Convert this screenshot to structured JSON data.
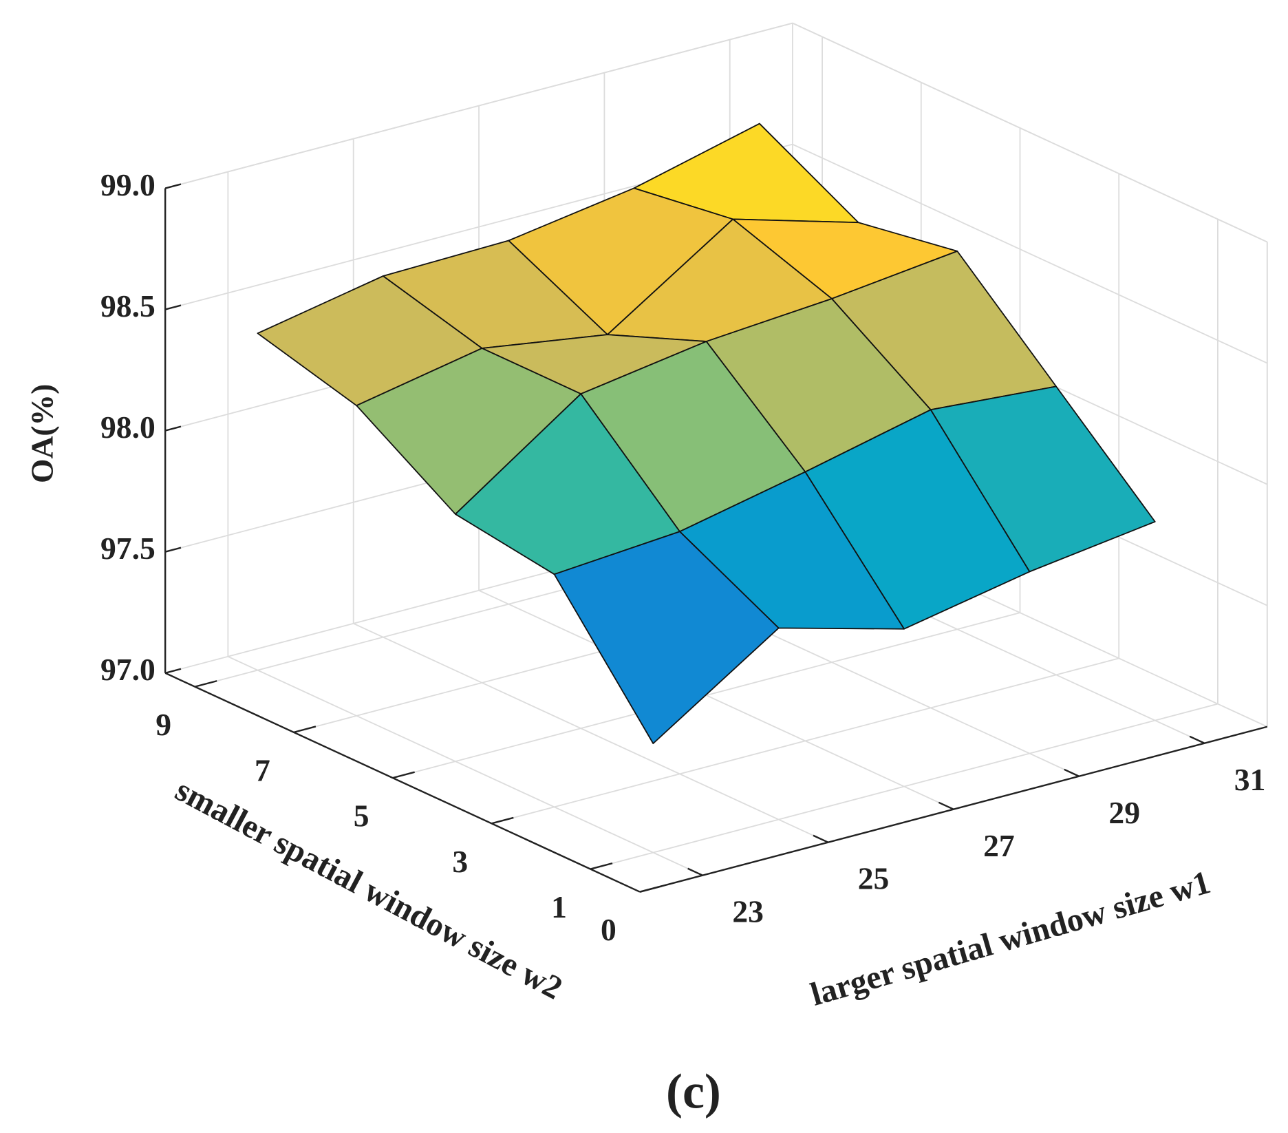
{
  "chart_data": {
    "type": "surface3d",
    "caption": "(c)",
    "xlabel": "larger spatial window size w1",
    "ylabel": "smaller spatial window size w2",
    "zlabel": "OA(%)",
    "x": [
      23,
      25,
      27,
      29,
      31
    ],
    "y": [
      1,
      3,
      5,
      7,
      9
    ],
    "z": [
      [
        97.45,
        97.79,
        97.65,
        97.75,
        97.82
      ],
      [
        97.96,
        98.0,
        98.11,
        98.23,
        98.19
      ],
      [
        98.02,
        98.38,
        98.46,
        98.5,
        98.56
      ],
      [
        98.28,
        98.38,
        98.3,
        98.64,
        98.49
      ],
      [
        98.39,
        98.49,
        98.5,
        98.58,
        98.71
      ]
    ],
    "xlim": [
      22,
      32
    ],
    "ylim": [
      0,
      9.6
    ],
    "zlim": [
      97,
      99
    ],
    "xticks": [
      23,
      25,
      27,
      29,
      31
    ],
    "yticks": [
      0,
      1,
      3,
      5,
      7,
      9
    ],
    "zticks": [
      {
        "value": 97,
        "label": "97.0"
      },
      {
        "value": 97.5,
        "label": "97.5"
      },
      {
        "value": 98,
        "label": "98.0"
      },
      {
        "value": 98.5,
        "label": "98.5"
      },
      {
        "value": 99,
        "label": "99.0"
      }
    ],
    "colormap": "parula",
    "grid": true
  }
}
